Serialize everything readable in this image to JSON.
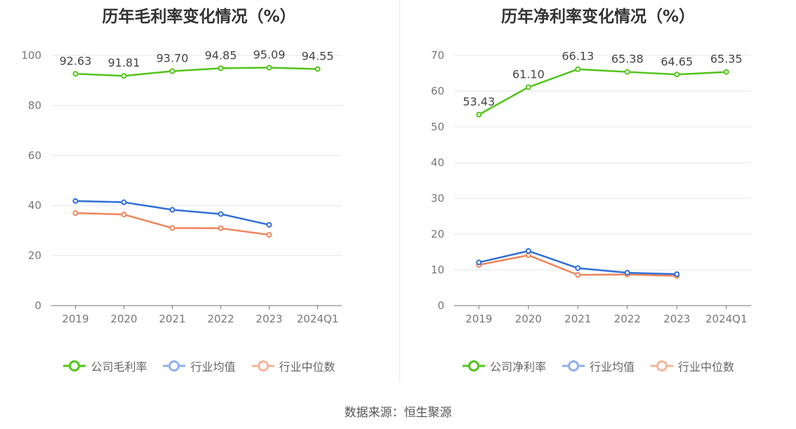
{
  "source_label": "数据来源：恒生聚源",
  "chart_data": [
    {
      "type": "line",
      "title": "历年毛利率变化情况（%）",
      "categories": [
        "2019",
        "2020",
        "2021",
        "2022",
        "2023",
        "2024Q1"
      ],
      "ylim": [
        0,
        100
      ],
      "yticks": [
        0,
        20,
        40,
        60,
        80,
        100
      ],
      "grid": true,
      "legend_position": "bottom",
      "series": [
        {
          "name": "公司毛利率",
          "color": "#52c41a",
          "values": [
            92.63,
            91.81,
            93.7,
            94.85,
            95.09,
            94.55
          ],
          "labels": [
            "92.63",
            "91.81",
            "93.70",
            "94.85",
            "95.09",
            "94.55"
          ]
        },
        {
          "name": "行业均值",
          "color": "#2f6fd8",
          "legend_color": "#8fb0ee",
          "values": [
            41.8,
            41.3,
            38.3,
            36.6,
            32.3,
            null
          ]
        },
        {
          "name": "行业中位数",
          "color": "#f0845a",
          "legend_color": "#f6b49a",
          "values": [
            37.0,
            36.4,
            31.0,
            30.9,
            28.3,
            null
          ]
        }
      ]
    },
    {
      "type": "line",
      "title": "历年净利率变化情况（%）",
      "categories": [
        "2019",
        "2020",
        "2021",
        "2022",
        "2023",
        "2024Q1"
      ],
      "ylim": [
        0,
        70
      ],
      "yticks": [
        0,
        10,
        20,
        30,
        40,
        50,
        60,
        70
      ],
      "grid": true,
      "legend_position": "bottom",
      "series": [
        {
          "name": "公司净利率",
          "color": "#52c41a",
          "values": [
            53.43,
            61.1,
            66.13,
            65.38,
            64.65,
            65.35
          ],
          "labels": [
            "53.43",
            "61.10",
            "66.13",
            "65.38",
            "64.65",
            "65.35"
          ]
        },
        {
          "name": "行业均值",
          "color": "#2f6fd8",
          "legend_color": "#8fb0ee",
          "values": [
            12.1,
            15.3,
            10.5,
            9.2,
            8.8,
            null
          ]
        },
        {
          "name": "行业中位数",
          "color": "#f0845a",
          "legend_color": "#f6b49a",
          "values": [
            11.4,
            14.1,
            8.6,
            8.7,
            8.3,
            null
          ]
        }
      ]
    }
  ]
}
